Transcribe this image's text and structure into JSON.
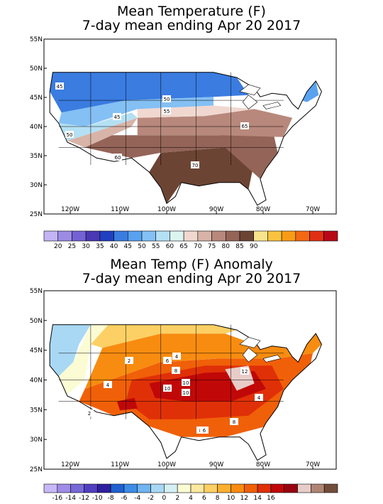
{
  "maps": [
    {
      "title_line1": "Mean Temperature (F)",
      "title_line2": "7-day mean ending Apr 20 2017",
      "lat_labels": [
        "55N",
        "50N",
        "45N",
        "40N",
        "35N",
        "30N",
        "25N"
      ],
      "lon_labels": [
        "120W",
        "110W",
        "100W",
        "90W",
        "80W",
        "70W"
      ],
      "colorbar": {
        "colors": [
          "#c4b4f4",
          "#9c8ce4",
          "#7462d4",
          "#4a38b4",
          "#2040c0",
          "#3a7ce0",
          "#58a2f0",
          "#84c0f4",
          "#b4e0f4",
          "#dcf4f0",
          "#f0d8d0",
          "#d8b4a8",
          "#b8887c",
          "#946458",
          "#6c4434",
          "#f8e48c",
          "#f8c440",
          "#f89c18",
          "#f46814",
          "#e03014",
          "#b80818"
        ],
        "labels": [
          "20",
          "25",
          "30",
          "35",
          "40",
          "45",
          "50",
          "55",
          "60",
          "65",
          "70",
          "75",
          "80",
          "85",
          "90"
        ]
      },
      "contour_labels": [
        "45",
        "50",
        "55",
        "45",
        "50",
        "65",
        "60",
        "70"
      ]
    },
    {
      "title_line1": "Mean Temp (F) Anomaly",
      "title_line2": "7-day mean ending Apr 20 2017",
      "lat_labels": [
        "55N",
        "50N",
        "45N",
        "40N",
        "35N",
        "30N",
        "25N"
      ],
      "lon_labels": [
        "120W",
        "110W",
        "100W",
        "90W",
        "80W",
        "70W"
      ],
      "colorbar": {
        "colors": [
          "#c8b8f8",
          "#a08ce8",
          "#7868d8",
          "#5040c0",
          "#3020a0",
          "#2060d0",
          "#3c8ce8",
          "#70b4f0",
          "#a8d8f4",
          "#d4f0f4",
          "#fcfcd4",
          "#fce8a0",
          "#fcd064",
          "#fcb030",
          "#f88c10",
          "#f06008",
          "#e03008",
          "#c00808",
          "#980410",
          "#e8ccc8",
          "#b08474",
          "#744c3c"
        ],
        "labels": [
          "-16",
          "-14",
          "-12",
          "-10",
          "-8",
          "-6",
          "-4",
          "-2",
          "0",
          "2",
          "4",
          "6",
          "8",
          "10",
          "12",
          "14",
          "16"
        ]
      },
      "contour_labels": [
        "2",
        "4",
        "6",
        "4",
        "8",
        "10",
        "10",
        "12",
        "8",
        "8",
        "6",
        "4",
        "2",
        "10"
      ]
    }
  ]
}
